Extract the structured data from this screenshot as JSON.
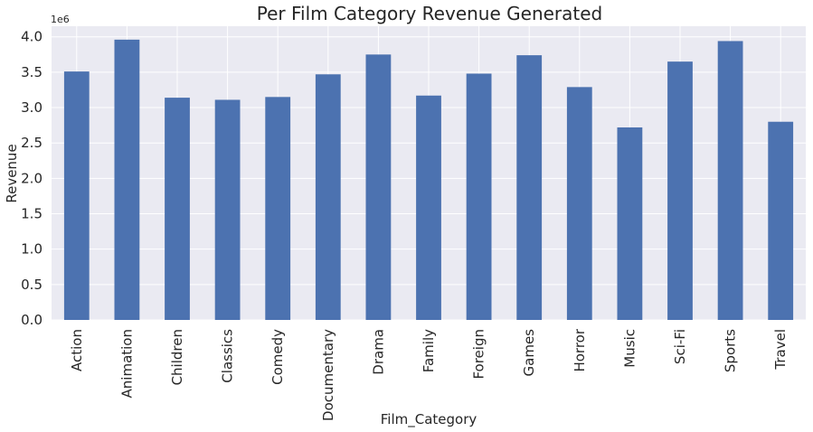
{
  "chart_data": {
    "type": "bar",
    "title": "Per Film Category Revenue Generated",
    "xlabel": "Film_Category",
    "ylabel": "Revenue",
    "offset_text": "1e6",
    "categories": [
      "Action",
      "Animation",
      "Children",
      "Classics",
      "Comedy",
      "Documentary",
      "Drama",
      "Family",
      "Foreign",
      "Games",
      "Horror",
      "Music",
      "Sci-Fi",
      "Sports",
      "Travel"
    ],
    "values": [
      3.51,
      3.96,
      3.14,
      3.11,
      3.15,
      3.47,
      3.75,
      3.17,
      3.48,
      3.74,
      3.29,
      2.72,
      3.65,
      3.94,
      2.8
    ],
    "value_scale": 1000000,
    "ylim": [
      0,
      4.15
    ],
    "yticks": [
      "0.0",
      "0.5",
      "1.0",
      "1.5",
      "2.0",
      "2.5",
      "3.0",
      "3.5",
      "4.0"
    ],
    "ytick_values": [
      0,
      0.5,
      1.0,
      1.5,
      2.0,
      2.5,
      3.0,
      3.5,
      4.0
    ],
    "grid": true,
    "colors": {
      "bar": "#4c72b0",
      "plot_bg": "#eaeaf2",
      "grid": "#ffffff"
    }
  }
}
